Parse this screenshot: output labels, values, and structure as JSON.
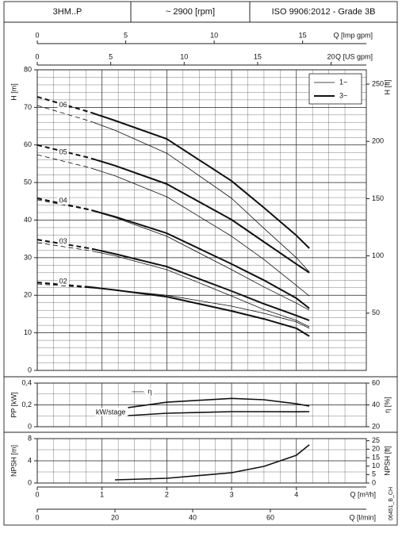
{
  "header": {
    "model": "3HM..P",
    "speed": "~ 2900 [rpm]",
    "standard": "ISO 9906:2012 - Grade 3B"
  },
  "footer": {
    "code": "06451_B_CH"
  },
  "chart_data": [
    {
      "type": "line",
      "ylabel": "H [m]",
      "y2label": "H [ft]",
      "xlim": [
        0,
        5.08
      ],
      "ylim": [
        0,
        80
      ],
      "yticks": [
        0,
        10,
        20,
        30,
        40,
        50,
        60,
        70,
        80
      ],
      "y2lim": [
        0,
        262.5
      ],
      "y2ticks": [
        50,
        100,
        150,
        200,
        250
      ],
      "x_top_axes": [
        {
          "label": "Q [Imp gpm]",
          "lim": [
            0,
            18.6
          ],
          "ticks": [
            0,
            5,
            10,
            15
          ]
        },
        {
          "label": "Q [US gpm]",
          "lim": [
            0,
            22.4
          ],
          "ticks": [
            0,
            5,
            10,
            15,
            20
          ]
        }
      ],
      "legend": [
        {
          "name": "1~",
          "width": 0.8
        },
        {
          "name": "3~",
          "width": 2
        }
      ],
      "legend_position": "upper right",
      "x": [
        0,
        0.8,
        1.2,
        2,
        3,
        3.5,
        4,
        4.2
      ],
      "stages": [
        {
          "label": "06",
          "1~": [
            70.5,
            66.4,
            63.9,
            57.8,
            45.8,
            37.8,
            30,
            26.2
          ],
          "3~": [
            72.8,
            68.8,
            66.5,
            61.6,
            50.4,
            43.3,
            35.9,
            32.5
          ]
        },
        {
          "label": "05",
          "1~": [
            57.4,
            54,
            51.8,
            46.2,
            35.7,
            29.5,
            22.6,
            19.8
          ],
          "3~": [
            60,
            56.6,
            54.5,
            49.6,
            40.1,
            34.2,
            28.3,
            26
          ]
        },
        {
          "label": "04",
          "1~": [
            45.4,
            42.7,
            40.7,
            35.7,
            26.8,
            22.2,
            17.9,
            16
          ],
          "3~": [
            45.8,
            42.8,
            40.9,
            36.5,
            28.3,
            24,
            19.2,
            16.5
          ]
        },
        {
          "label": "03",
          "1~": [
            34,
            31.9,
            30.5,
            26.8,
            19.8,
            16.2,
            13.3,
            11.6
          ],
          "3~": [
            34.8,
            32.5,
            31,
            27.6,
            21.1,
            17.7,
            14.6,
            13.3
          ]
        },
        {
          "label": "02",
          "1~": [
            23,
            22,
            21.4,
            20,
            17.1,
            15.2,
            12.9,
            11.2
          ],
          "3~": [
            23.4,
            22.2,
            21.4,
            19.6,
            15.8,
            13.7,
            11.2,
            9.1
          ]
        }
      ]
    },
    {
      "type": "line",
      "ylabel": "PP [kW]",
      "y2label": "η [%]",
      "xlim": [
        0,
        5.08
      ],
      "ylim": [
        0,
        0.4
      ],
      "yticks": [
        0,
        {
          "value": 0.2,
          "label": "0,2"
        },
        {
          "value": 0.4,
          "label": "0,4"
        }
      ],
      "y2lim": [
        20,
        60
      ],
      "y2ticks": [
        20,
        40,
        60
      ],
      "x": [
        1.4,
        2,
        3,
        3.5,
        4,
        4.2
      ],
      "series": [
        {
          "name": "η",
          "axis": "y2",
          "color": "#111",
          "values": [
            37.5,
            42.5,
            46,
            44.7,
            41,
            39
          ]
        },
        {
          "name": "kW/stage",
          "color": "#111",
          "values": [
            0.102,
            0.124,
            0.138,
            0.138,
            0.137,
            0.138
          ]
        }
      ]
    },
    {
      "type": "line",
      "ylabel": "NPSH [m]",
      "y2label": "NPSH [ft]",
      "xlabel": "Q [m³/h]",
      "xlim": [
        0,
        5.08
      ],
      "xticks": [
        0,
        1,
        2,
        3,
        4
      ],
      "ylim": [
        0,
        8
      ],
      "yticks": [
        0,
        4,
        8
      ],
      "y2lim": [
        0,
        26.25
      ],
      "y2ticks": [
        0,
        5,
        10,
        15,
        20,
        25
      ],
      "x_bottom_axes": [
        {
          "label": "Q [l/min]",
          "lim": [
            0,
            84.7
          ],
          "ticks": [
            0,
            20,
            40,
            60
          ]
        }
      ],
      "x": [
        1.2,
        2,
        3,
        3.5,
        4,
        4.2
      ],
      "series": [
        {
          "name": "NPSH",
          "color": "#111",
          "values": [
            0.57,
            0.86,
            1.86,
            3,
            5,
            6.9
          ]
        }
      ]
    }
  ]
}
